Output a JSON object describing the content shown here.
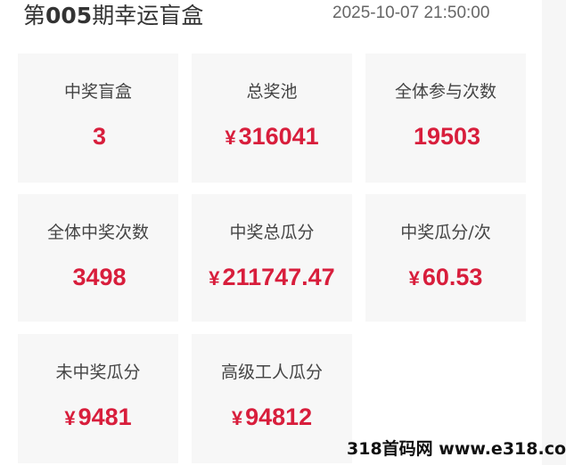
{
  "header": {
    "title_prefix": "第",
    "title_number": "005",
    "title_suffix": "期幸运盲盒",
    "datetime": "2025-10-07 21:50:00"
  },
  "accent_color": "#d81e3c",
  "stats": [
    {
      "label": "中奖盲盒",
      "currency": "",
      "value": "3"
    },
    {
      "label": "总奖池",
      "currency": "¥",
      "value": "316041"
    },
    {
      "label": "全体参与次数",
      "currency": "",
      "value": "19503"
    },
    {
      "label": "全体中奖次数",
      "currency": "",
      "value": "3498"
    },
    {
      "label": "中奖总瓜分",
      "currency": "¥",
      "value": "211747.47"
    },
    {
      "label": "中奖瓜分/次",
      "currency": "¥",
      "value": "60.53"
    },
    {
      "label": "未中奖瓜分",
      "currency": "¥",
      "value": "9481"
    },
    {
      "label": "高级工人瓜分",
      "currency": "¥",
      "value": "94812"
    }
  ],
  "watermark": "318首码网 www.e318.com"
}
